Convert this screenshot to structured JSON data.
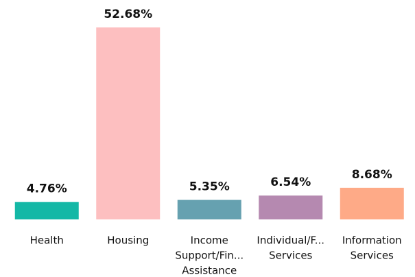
{
  "chart_data": {
    "type": "bar",
    "categories": [
      [
        "Health"
      ],
      [
        "Housing"
      ],
      [
        "Income",
        "Support/Fin...",
        "Assistance"
      ],
      [
        "Individual/F...",
        "Services"
      ],
      [
        "Information",
        "Services"
      ]
    ],
    "values": [
      4.76,
      52.68,
      5.35,
      6.54,
      8.68
    ],
    "value_labels": [
      "4.76%",
      "52.68%",
      "5.35%",
      "6.54%",
      "8.68%"
    ],
    "colors": [
      "#14b8a6",
      "#fdbfc0",
      "#66a1b0",
      "#b589b0",
      "#feaa87"
    ]
  }
}
